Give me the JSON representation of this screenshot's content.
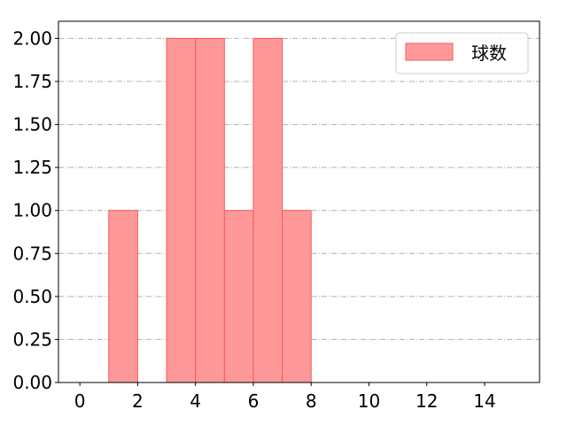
{
  "chart_data": {
    "type": "bar",
    "subtype": "histogram",
    "bins": [
      [
        1,
        2
      ],
      [
        3,
        4
      ],
      [
        4,
        5
      ],
      [
        5,
        6
      ],
      [
        6,
        7
      ],
      [
        7,
        8
      ]
    ],
    "values": [
      1,
      2,
      2,
      1,
      2,
      1
    ],
    "series": [
      {
        "name": "球数"
      }
    ],
    "xlim": [
      -0.74,
      15.9
    ],
    "ylim": [
      0,
      2.1
    ],
    "xticks": [
      "0",
      "2",
      "4",
      "6",
      "8",
      "10",
      "12",
      "14"
    ],
    "yticks": [
      "0.00",
      "0.25",
      "0.50",
      "0.75",
      "1.00",
      "1.25",
      "1.50",
      "1.75",
      "2.00"
    ],
    "grid": "y, dash-dot",
    "legend_placement": "top-right",
    "colors": {
      "bar_fill": "#ff9999",
      "bar_edge": "#ff5555",
      "grid": "#b0b0b0"
    }
  }
}
